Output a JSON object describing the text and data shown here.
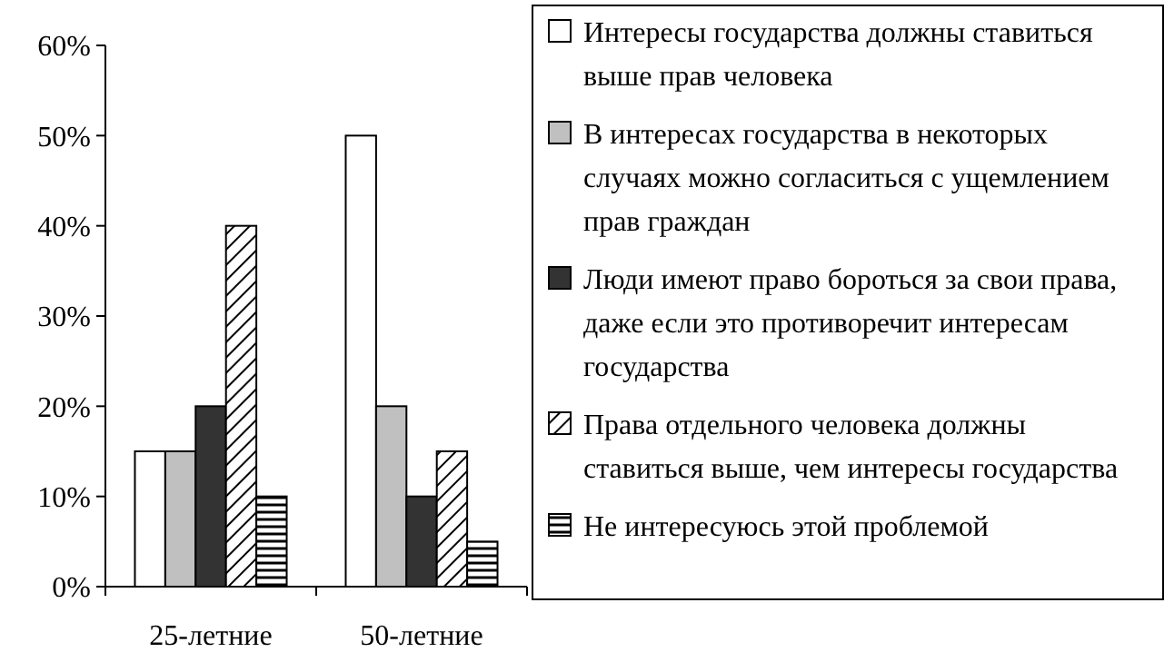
{
  "chart_data": {
    "type": "bar",
    "categories": [
      "25-летние",
      "50-летние"
    ],
    "series": [
      {
        "name": "Интересы государства должны ставиться выше прав человека",
        "color": "#ffffff",
        "values": [
          15,
          50
        ]
      },
      {
        "name": "В интересах государства в некоторых случаях можно согласиться с ущемлением прав граждан",
        "color": "#c0c0c0",
        "values": [
          15,
          20
        ]
      },
      {
        "name": "Люди имеют право бороться за свои права, даже если это противоречит интересам государства",
        "color": "#333333",
        "values": [
          20,
          10
        ]
      },
      {
        "name": "Права отдельного человека должны ставиться выше, чем интересы государства",
        "color": "#000000",
        "values": [
          40,
          15
        ]
      },
      {
        "name": "Не интересуюсь этой проблемой",
        "color": "#000001",
        "values": [
          10,
          5
        ]
      }
    ],
    "ylim": [
      0,
      60
    ],
    "yticks": [
      {
        "value": 0,
        "label": "0%"
      },
      {
        "value": 10,
        "label": "10%"
      },
      {
        "value": 20,
        "label": "20%"
      },
      {
        "value": 30,
        "label": "30%"
      },
      {
        "value": 40,
        "label": "40%"
      },
      {
        "value": 50,
        "label": "50%"
      },
      {
        "value": 60,
        "label": "60%"
      }
    ],
    "legend": "right"
  }
}
